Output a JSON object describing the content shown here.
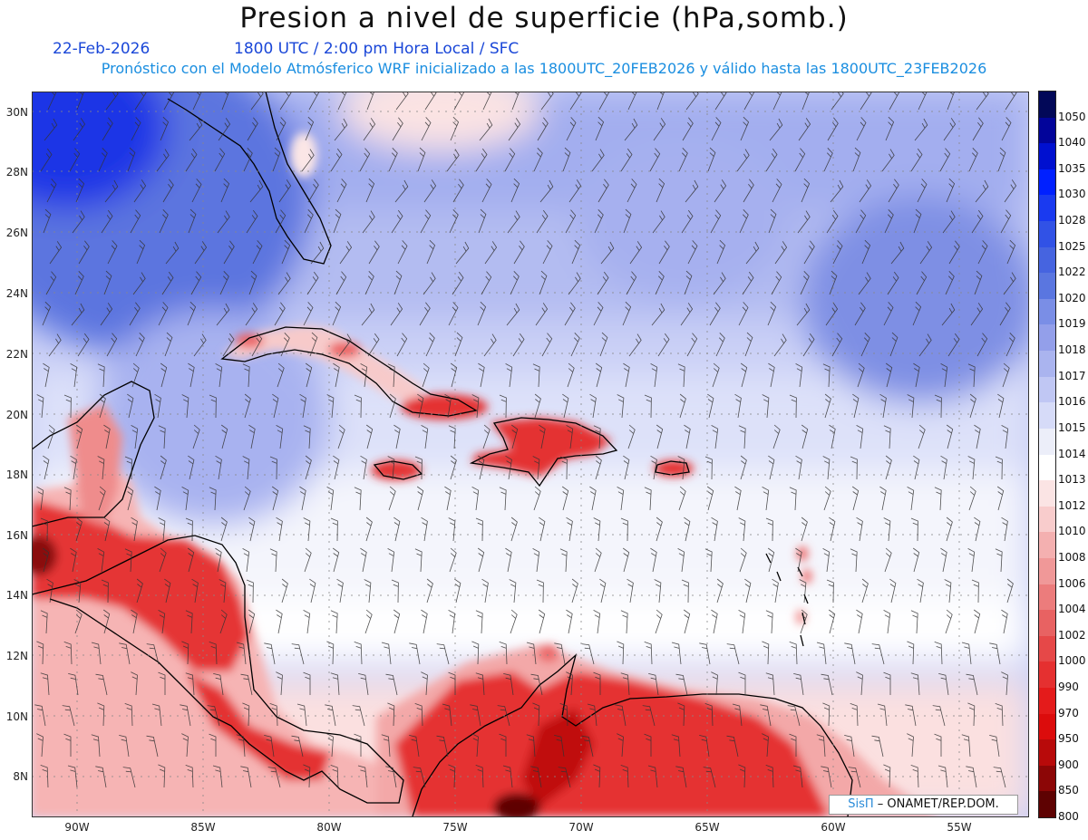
{
  "header": {
    "title": "Presion a nivel de superficie (hPa,somb.)",
    "date": "22-Feb-2026",
    "time": "1800 UTC / 2:00 pm Hora Local / SFC",
    "forecast": "Pronóstico con el Modelo Atmósferico WRF inicializado a las 1800UTC_20FEB2026 y válido hasta las  1800UTC_23FEB2026"
  },
  "axes": {
    "lat_labels": [
      "30N",
      "28N",
      "26N",
      "24N",
      "22N",
      "20N",
      "18N",
      "16N",
      "14N",
      "12N",
      "10N",
      "8N"
    ],
    "lon_labels": [
      "90W",
      "85W",
      "80W",
      "75W",
      "70W",
      "65W",
      "60W",
      "55W"
    ]
  },
  "legend": {
    "levels": [
      "1050",
      "1040",
      "1035",
      "1030",
      "1028",
      "1025",
      "1022",
      "1020",
      "1019",
      "1018",
      "1017",
      "1016",
      "1015",
      "1014",
      "1013",
      "1012",
      "1010",
      "1008",
      "1006",
      "1004",
      "1002",
      "1000",
      "990",
      "970",
      "950",
      "900",
      "850",
      "800"
    ],
    "colors": [
      "#020858",
      "#02049a",
      "#0010d0",
      "#0020ff",
      "#1a3af0",
      "#3152e6",
      "#4664e0",
      "#5a76e0",
      "#7a8ee6",
      "#939fea",
      "#aab4ef",
      "#c0c7f4",
      "#d6dbf8",
      "#eceef9",
      "#ffffff",
      "#fbe4e4",
      "#f8cccc",
      "#f4b0b0",
      "#f09898",
      "#ec7c7c",
      "#e86262",
      "#e64848",
      "#e53030",
      "#e41b1b",
      "#dc0c0c",
      "#b80a0a",
      "#8c0606",
      "#5e0202"
    ]
  },
  "credit": {
    "brand": "SisΠ",
    "text": "– ONAMET/REP.DOM."
  }
}
